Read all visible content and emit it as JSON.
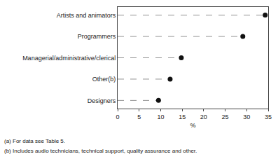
{
  "chart_data": {
    "type": "dot",
    "orientation": "horizontal",
    "categories": [
      "Artists and animators",
      "Programmers",
      "Managerial/administrative/clerical",
      "Other(b)",
      "Designers"
    ],
    "values": [
      34.3,
      29.1,
      14.8,
      12.2,
      9.5
    ],
    "xlabel": "%",
    "xlim": [
      0,
      35
    ],
    "xticks": [
      0,
      5,
      10,
      15,
      20,
      25,
      30,
      35
    ],
    "color": "#111111",
    "marker": "circle",
    "line_style": "dashed",
    "grid": false,
    "annotations": [
      "(a) For data see Table 5.",
      "(b) Includes audio technicians, technical support, quality assurance and other."
    ]
  }
}
